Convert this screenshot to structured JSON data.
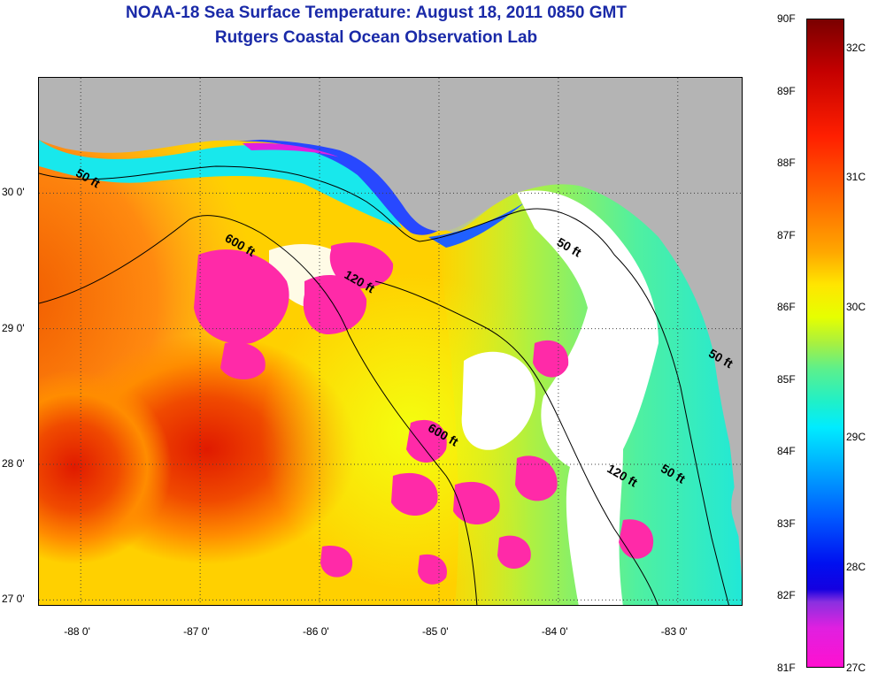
{
  "header": {
    "title": "NOAA-18 Sea Surface Temperature:  August 18, 2011 0850 GMT",
    "subtitle": "Rutgers Coastal Ocean Observation Lab"
  },
  "map": {
    "lon_range": [
      -88.35,
      -82.45
    ],
    "lat_range": [
      26.95,
      30.85
    ],
    "lon_ticks": [
      {
        "value": -88,
        "label": "-88 0'"
      },
      {
        "value": -87,
        "label": "-87 0'"
      },
      {
        "value": -86,
        "label": "-86 0'"
      },
      {
        "value": -85,
        "label": "-85 0'"
      },
      {
        "value": -84,
        "label": "-84 0'"
      },
      {
        "value": -83,
        "label": "-83 0'"
      }
    ],
    "lat_ticks": [
      {
        "value": 30,
        "label": "30 0'"
      },
      {
        "value": 29,
        "label": "29 0'"
      },
      {
        "value": 28,
        "label": "28 0'"
      },
      {
        "value": 27,
        "label": "27 0'"
      }
    ],
    "land_color": "#b4b4b4",
    "cloud_color": "#ffffff",
    "grid": "dotted",
    "contours": [
      {
        "label": "50 ft",
        "lon": -88.05,
        "lat": 30.13
      },
      {
        "label": "600 ft",
        "lon": -86.8,
        "lat": 29.65
      },
      {
        "label": "120 ft",
        "lon": -85.8,
        "lat": 29.38
      },
      {
        "label": "50 ft",
        "lon": -84.02,
        "lat": 29.62
      },
      {
        "label": "600 ft",
        "lon": -85.1,
        "lat": 28.25
      },
      {
        "label": "120 ft",
        "lon": -83.6,
        "lat": 27.95
      },
      {
        "label": "50 ft",
        "lon": -83.15,
        "lat": 27.95
      },
      {
        "label": "50 ft",
        "lon": -82.75,
        "lat": 28.8
      }
    ]
  },
  "colorbar": {
    "fahrenheit": [
      {
        "value": 90,
        "label": "90F"
      },
      {
        "value": 89,
        "label": "89F"
      },
      {
        "value": 88,
        "label": "88F"
      },
      {
        "value": 87,
        "label": "87F"
      },
      {
        "value": 86,
        "label": "86F"
      },
      {
        "value": 85,
        "label": "85F"
      },
      {
        "value": 84,
        "label": "84F"
      },
      {
        "value": 83,
        "label": "83F"
      },
      {
        "value": 82,
        "label": "82F"
      },
      {
        "value": 81,
        "label": "81F"
      }
    ],
    "celsius": [
      {
        "value": 32,
        "label": "32C"
      },
      {
        "value": 31,
        "label": "31C"
      },
      {
        "value": 30,
        "label": "30C"
      },
      {
        "value": 29,
        "label": "29C"
      },
      {
        "value": 28,
        "label": "28C"
      },
      {
        "value": 27,
        "label": "27C"
      }
    ]
  }
}
